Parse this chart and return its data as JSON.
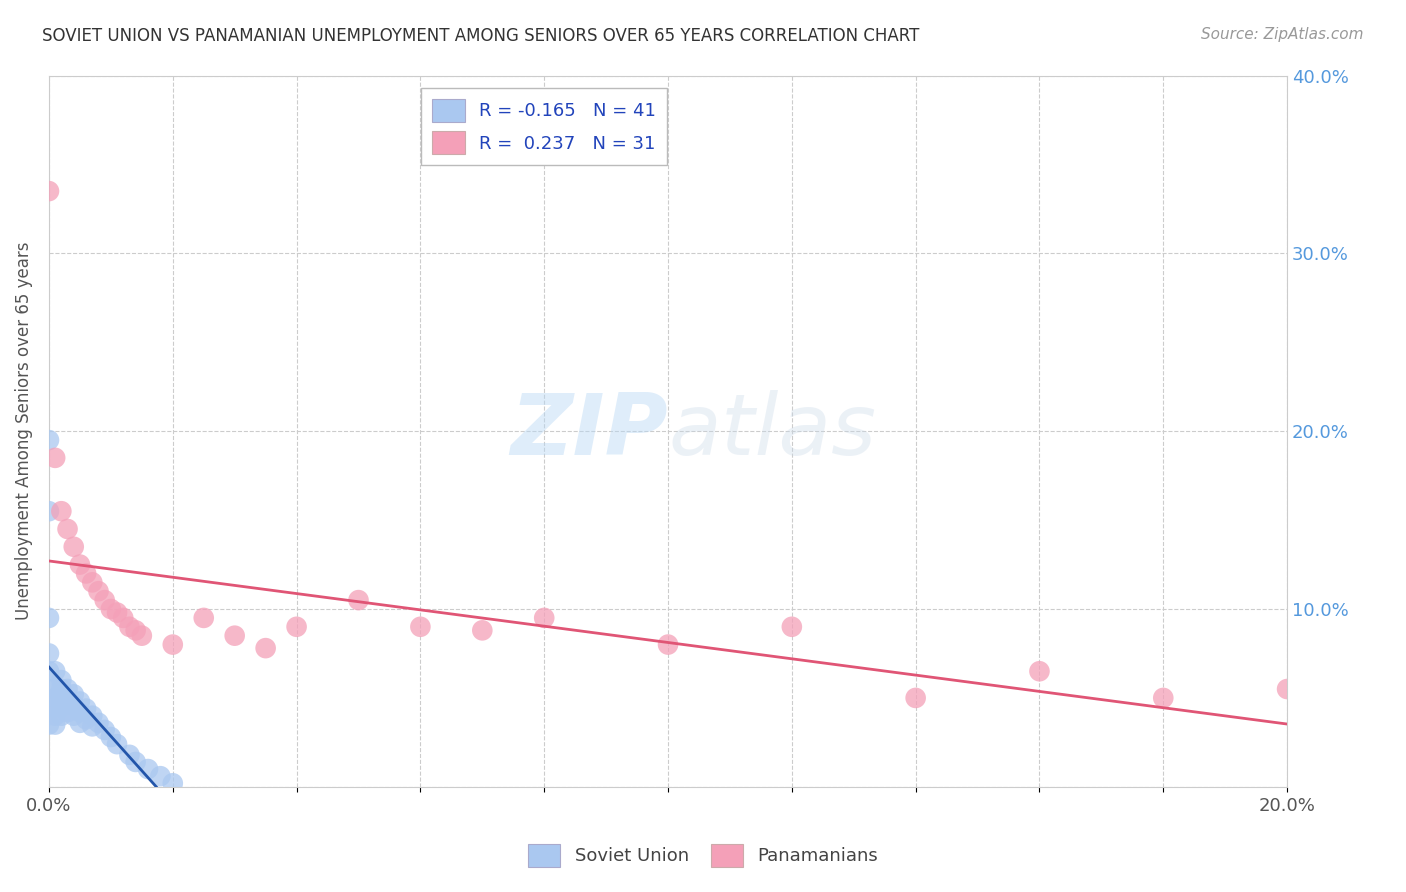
{
  "title": "SOVIET UNION VS PANAMANIAN UNEMPLOYMENT AMONG SENIORS OVER 65 YEARS CORRELATION CHART",
  "source": "Source: ZipAtlas.com",
  "ylabel": "Unemployment Among Seniors over 65 years",
  "xlim": [
    0.0,
    0.2
  ],
  "ylim": [
    0.0,
    0.4
  ],
  "background_color": "#ffffff",
  "soviet_color": "#aac8f0",
  "soviet_line_color": "#2255aa",
  "panama_color": "#f4a0b8",
  "panama_line_color": "#e05575",
  "soviet_R": -0.165,
  "soviet_N": 41,
  "panama_R": 0.237,
  "panama_N": 31,
  "soviet_x": [
    0.0,
    0.0,
    0.0,
    0.0,
    0.0,
    0.0,
    0.0,
    0.0,
    0.001,
    0.001,
    0.001,
    0.001,
    0.001,
    0.001,
    0.002,
    0.002,
    0.002,
    0.002,
    0.002,
    0.003,
    0.003,
    0.003,
    0.004,
    0.004,
    0.004,
    0.005,
    0.005,
    0.005,
    0.006,
    0.006,
    0.007,
    0.007,
    0.008,
    0.009,
    0.01,
    0.011,
    0.013,
    0.014,
    0.016,
    0.018,
    0.02
  ],
  "soviet_y": [
    0.195,
    0.155,
    0.095,
    0.075,
    0.065,
    0.055,
    0.045,
    0.035,
    0.065,
    0.055,
    0.05,
    0.045,
    0.04,
    0.035,
    0.06,
    0.055,
    0.05,
    0.045,
    0.04,
    0.055,
    0.048,
    0.042,
    0.052,
    0.046,
    0.04,
    0.048,
    0.042,
    0.036,
    0.044,
    0.038,
    0.04,
    0.034,
    0.036,
    0.032,
    0.028,
    0.024,
    0.018,
    0.014,
    0.01,
    0.006,
    0.002
  ],
  "panama_x": [
    0.0,
    0.001,
    0.002,
    0.003,
    0.004,
    0.005,
    0.006,
    0.007,
    0.008,
    0.009,
    0.01,
    0.011,
    0.012,
    0.013,
    0.014,
    0.015,
    0.02,
    0.025,
    0.03,
    0.035,
    0.04,
    0.05,
    0.06,
    0.07,
    0.08,
    0.1,
    0.12,
    0.14,
    0.16,
    0.18,
    0.2
  ],
  "panama_y": [
    0.335,
    0.185,
    0.155,
    0.145,
    0.135,
    0.125,
    0.12,
    0.115,
    0.11,
    0.105,
    0.1,
    0.098,
    0.095,
    0.09,
    0.088,
    0.085,
    0.08,
    0.095,
    0.085,
    0.078,
    0.09,
    0.105,
    0.09,
    0.088,
    0.095,
    0.08,
    0.09,
    0.05,
    0.065,
    0.05,
    0.055
  ]
}
